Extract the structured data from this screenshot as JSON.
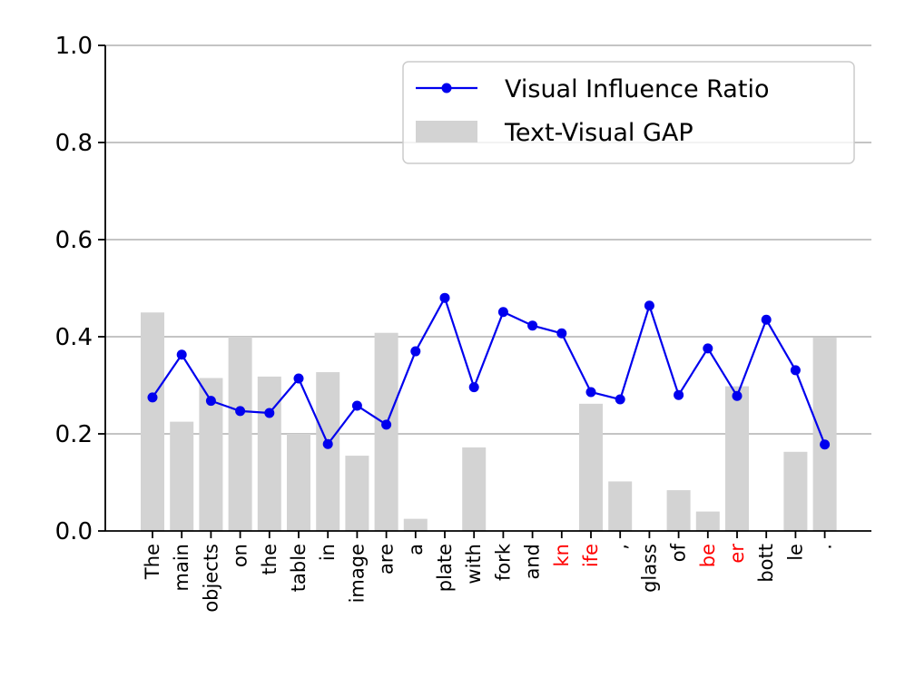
{
  "chart_data": {
    "type": "bar",
    "categories": [
      "The",
      "main",
      "objects",
      "on",
      "the",
      "table",
      "in",
      "image",
      "are",
      "a",
      "plate",
      "with",
      "fork",
      "and",
      "kn",
      "ife",
      ",",
      "glass",
      "of",
      "be",
      "er",
      "bott",
      "le",
      "."
    ],
    "highlighted_categories": [
      "kn",
      "ife",
      "be",
      "er"
    ],
    "series": [
      {
        "name": "Text-Visual GAP",
        "type": "bar",
        "color": "#d3d3d3",
        "values": [
          0.45,
          0.225,
          0.315,
          0.4,
          0.318,
          0.2,
          0.327,
          0.155,
          0.408,
          0.025,
          0.0,
          0.172,
          0.0,
          0.0,
          0.0,
          0.262,
          0.102,
          0.0,
          0.084,
          0.04,
          0.298,
          0.0,
          0.163,
          0.398
        ]
      },
      {
        "name": "Visual Influence Ratio",
        "type": "line",
        "color": "#0000ee",
        "values": [
          0.275,
          0.363,
          0.268,
          0.247,
          0.243,
          0.314,
          0.179,
          0.258,
          0.219,
          0.37,
          0.48,
          0.296,
          0.451,
          0.423,
          0.407,
          0.286,
          0.271,
          0.464,
          0.28,
          0.376,
          0.278,
          0.435,
          0.331,
          0.178
        ]
      }
    ],
    "ylim": [
      0,
      1.0
    ],
    "yticks": [
      "0.0",
      "0.2",
      "0.4",
      "0.6",
      "0.8",
      "1.0"
    ],
    "grid": "horizontal",
    "legend_position": "top-right",
    "highlight_color": "#ff0000",
    "xlabel": "",
    "ylabel": "",
    "title": ""
  }
}
